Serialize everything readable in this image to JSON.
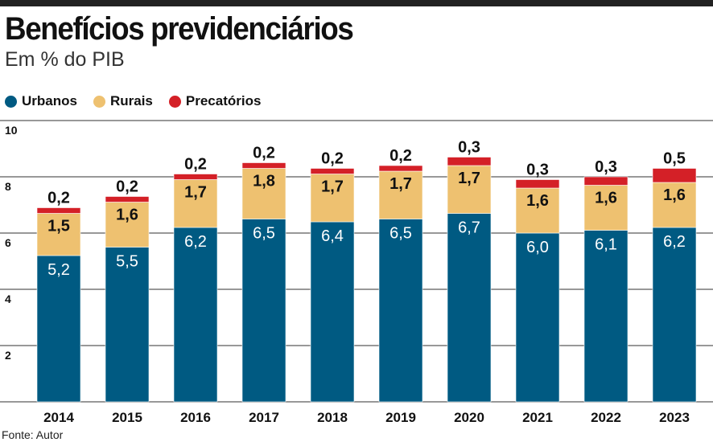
{
  "title": "Benefícios previdenciários",
  "subtitle": "Em % do PIB",
  "source": "Fonte: Autor",
  "chart_data": {
    "type": "bar",
    "stacked": true,
    "categories": [
      "2014",
      "2015",
      "2016",
      "2017",
      "2018",
      "2019",
      "2020",
      "2021",
      "2022",
      "2023"
    ],
    "series": [
      {
        "name": "Urbanos",
        "color": "#005a82",
        "values": [
          5.2,
          5.5,
          6.2,
          6.5,
          6.4,
          6.5,
          6.7,
          6.0,
          6.1,
          6.2
        ],
        "labels": [
          "5,2",
          "5,5",
          "6,2",
          "6,5",
          "6,4",
          "6,5",
          "6,7",
          "6,0",
          "6,1",
          "6,2"
        ]
      },
      {
        "name": "Rurais",
        "color": "#eec170",
        "values": [
          1.5,
          1.6,
          1.7,
          1.8,
          1.7,
          1.7,
          1.7,
          1.6,
          1.6,
          1.6
        ],
        "labels": [
          "1,5",
          "1,6",
          "1,7",
          "1,8",
          "1,7",
          "1,7",
          "1,7",
          "1,6",
          "1,6",
          "1,6"
        ]
      },
      {
        "name": "Precatórios",
        "color": "#d42027",
        "values": [
          0.2,
          0.2,
          0.2,
          0.2,
          0.2,
          0.2,
          0.3,
          0.3,
          0.3,
          0.5
        ],
        "labels": [
          "0,2",
          "0,2",
          "0,2",
          "0,2",
          "0,2",
          "0,2",
          "0,3",
          "0,3",
          "0,3",
          "0,5"
        ]
      }
    ],
    "yticks": [
      "2",
      "4",
      "6",
      "8",
      "10"
    ],
    "ylim": [
      0,
      10
    ],
    "grid": true,
    "legend": "top-left"
  }
}
